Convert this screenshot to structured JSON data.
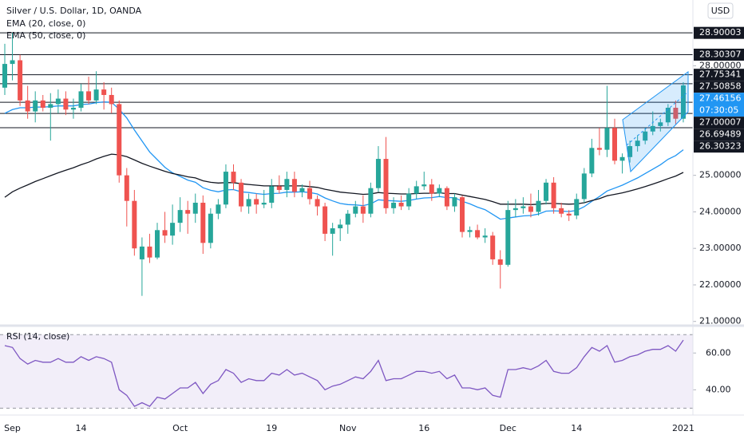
{
  "chart_data": [
    {
      "type": "candlestick",
      "title": "Silver / U.S. Dollar, 1D, OANDA",
      "currency": "USD",
      "categories": [
        null,
        "Sep",
        null,
        null,
        null,
        null,
        null,
        null,
        null,
        null,
        "14",
        null,
        null,
        null,
        null,
        null,
        null,
        null,
        null,
        null,
        null,
        null,
        null,
        "Oct",
        null,
        null,
        null,
        null,
        null,
        null,
        null,
        null,
        null,
        null,
        null,
        "19",
        null,
        null,
        null,
        null,
        null,
        null,
        null,
        null,
        null,
        "Nov",
        null,
        null,
        null,
        null,
        null,
        null,
        null,
        null,
        null,
        "16",
        null,
        null,
        null,
        null,
        null,
        null,
        null,
        null,
        null,
        null,
        "Dec",
        null,
        null,
        null,
        null,
        null,
        null,
        null,
        null,
        "14",
        null,
        null,
        null,
        null,
        null,
        null,
        null,
        null,
        null,
        null,
        null,
        null,
        null,
        "2021"
      ],
      "open": [
        27.4,
        28.05,
        28.15,
        27.05,
        26.75,
        27.05,
        26.85,
        26.95,
        27.1,
        26.8,
        26.85,
        27.3,
        27.05,
        27.35,
        27.2,
        26.95,
        25.0,
        24.3,
        22.7,
        23.05,
        22.75,
        23.5,
        23.35,
        23.7,
        24.05,
        23.95,
        24.25,
        23.15,
        23.95,
        24.2,
        25.1,
        24.8,
        24.15,
        24.35,
        24.2,
        24.25,
        24.7,
        24.6,
        24.9,
        24.55,
        24.65,
        24.35,
        24.15,
        23.4,
        23.55,
        23.65,
        23.95,
        24.15,
        23.95,
        24.65,
        25.45,
        24.1,
        24.25,
        24.15,
        24.5,
        24.7,
        24.75,
        24.5,
        24.65,
        24.15,
        24.4,
        23.45,
        23.5,
        23.3,
        23.35,
        22.7,
        22.55,
        24.05,
        24.1,
        24.15,
        24.0,
        24.3,
        24.8,
        24.1,
        23.95,
        23.9,
        24.35,
        25.05,
        25.75,
        25.7,
        26.3,
        25.4,
        25.5,
        25.8,
        25.95,
        26.2,
        26.35,
        26.45,
        26.85,
        26.55
      ],
      "high": [
        28.6,
        28.9,
        28.3,
        27.45,
        27.3,
        27.2,
        27.25,
        27.35,
        27.3,
        27.1,
        27.5,
        27.7,
        27.85,
        27.55,
        27.4,
        27.05,
        25.2,
        24.6,
        23.3,
        23.4,
        23.7,
        24.0,
        24.2,
        24.4,
        24.3,
        24.5,
        24.45,
        24.1,
        24.35,
        25.3,
        25.3,
        24.9,
        24.5,
        24.5,
        24.6,
        24.9,
        25.0,
        25.1,
        25.1,
        24.75,
        24.85,
        24.45,
        24.25,
        23.7,
        23.8,
        24.05,
        24.3,
        24.45,
        24.8,
        25.8,
        26.05,
        24.4,
        24.45,
        24.65,
        24.85,
        25.1,
        24.9,
        24.75,
        24.7,
        24.5,
        24.45,
        23.6,
        23.65,
        23.55,
        23.45,
        22.95,
        24.3,
        24.35,
        24.4,
        24.5,
        24.6,
        24.9,
        24.95,
        24.25,
        24.05,
        24.5,
        25.2,
        26.0,
        26.3,
        27.45,
        26.55,
        25.6,
        25.95,
        26.1,
        26.3,
        26.75,
        26.55,
        26.95,
        27.05,
        27.55
      ],
      "low": [
        27.2,
        27.6,
        26.9,
        26.55,
        26.45,
        26.75,
        25.95,
        26.7,
        26.65,
        26.55,
        26.75,
        26.95,
        26.95,
        26.8,
        26.7,
        24.8,
        23.6,
        22.8,
        21.7,
        22.6,
        22.7,
        23.15,
        23.1,
        23.45,
        23.4,
        23.7,
        22.85,
        23.0,
        23.8,
        24.1,
        24.6,
        24.0,
        23.95,
        23.95,
        24.1,
        24.1,
        24.5,
        24.4,
        24.4,
        24.4,
        24.2,
        23.9,
        23.2,
        22.8,
        23.2,
        23.4,
        23.85,
        23.7,
        23.85,
        24.55,
        23.95,
        23.95,
        24.05,
        24.05,
        24.35,
        24.6,
        24.3,
        24.4,
        24.05,
        24.0,
        23.3,
        23.3,
        23.25,
        23.15,
        22.55,
        21.9,
        22.5,
        23.85,
        23.95,
        23.85,
        23.9,
        24.2,
        23.95,
        23.85,
        23.75,
        23.8,
        24.25,
        24.95,
        25.55,
        25.5,
        25.3,
        25.05,
        25.35,
        25.65,
        25.85,
        26.1,
        26.2,
        26.35,
        26.4,
        26.45
      ],
      "close": [
        28.05,
        28.15,
        27.05,
        26.75,
        27.05,
        26.85,
        26.95,
        27.1,
        26.8,
        26.85,
        27.3,
        27.05,
        27.35,
        27.2,
        26.95,
        25.0,
        24.3,
        23.0,
        23.05,
        22.75,
        23.5,
        23.35,
        23.7,
        24.05,
        23.95,
        24.25,
        23.15,
        23.95,
        24.2,
        25.1,
        24.8,
        24.15,
        24.35,
        24.2,
        24.25,
        24.7,
        24.6,
        24.9,
        24.55,
        24.65,
        24.35,
        24.15,
        23.4,
        23.55,
        23.65,
        23.95,
        24.15,
        23.95,
        24.65,
        25.45,
        24.1,
        24.25,
        24.15,
        24.5,
        24.7,
        24.75,
        24.5,
        24.65,
        24.15,
        24.4,
        23.45,
        23.5,
        23.3,
        23.35,
        22.7,
        22.55,
        24.05,
        24.1,
        24.15,
        24.0,
        24.3,
        24.8,
        24.1,
        23.95,
        23.9,
        24.35,
        25.05,
        25.75,
        25.7,
        26.3,
        25.4,
        25.5,
        25.8,
        25.95,
        26.2,
        26.35,
        26.45,
        26.85,
        26.55,
        27.46156
      ],
      "up_color": "#26a69a",
      "down_color": "#ef5350",
      "series": [
        {
          "name": "EMA (20, close, 0)",
          "color": "#2196f3",
          "values": [
            26.7,
            26.8,
            26.85,
            26.85,
            26.87,
            26.87,
            26.88,
            26.9,
            26.9,
            26.9,
            26.94,
            26.95,
            26.99,
            27.01,
            27.0,
            26.81,
            26.57,
            26.24,
            25.94,
            25.64,
            25.43,
            25.22,
            25.07,
            24.97,
            24.87,
            24.81,
            24.66,
            24.59,
            24.55,
            24.6,
            24.61,
            24.55,
            24.53,
            24.5,
            24.48,
            24.5,
            24.51,
            24.54,
            24.54,
            24.55,
            24.53,
            24.49,
            24.38,
            24.3,
            24.23,
            24.2,
            24.19,
            24.17,
            24.22,
            24.33,
            24.31,
            24.3,
            24.29,
            24.31,
            24.35,
            24.38,
            24.39,
            24.42,
            24.39,
            24.39,
            24.29,
            24.22,
            24.13,
            24.06,
            23.93,
            23.8,
            23.83,
            23.86,
            23.89,
            23.9,
            23.94,
            24.02,
            24.03,
            24.02,
            24.01,
            24.04,
            24.14,
            24.29,
            24.42,
            24.57,
            24.65,
            24.73,
            24.83,
            24.93,
            25.05,
            25.17,
            25.29,
            25.44,
            25.54,
            25.7
          ]
        },
        {
          "name": "EMA (50, close, 0)",
          "color": "#131722",
          "values": [
            24.4,
            24.55,
            24.65,
            24.74,
            24.83,
            24.91,
            24.99,
            25.07,
            25.14,
            25.21,
            25.29,
            25.36,
            25.45,
            25.52,
            25.58,
            25.56,
            25.51,
            25.42,
            25.33,
            25.25,
            25.18,
            25.11,
            25.05,
            25.01,
            24.96,
            24.93,
            24.85,
            24.81,
            24.79,
            24.8,
            24.8,
            24.77,
            24.75,
            24.73,
            24.71,
            24.71,
            24.71,
            24.71,
            24.71,
            24.71,
            24.69,
            24.67,
            24.62,
            24.58,
            24.54,
            24.52,
            24.5,
            24.48,
            24.49,
            24.53,
            24.51,
            24.5,
            24.49,
            24.49,
            24.5,
            24.51,
            24.51,
            24.52,
            24.5,
            24.5,
            24.46,
            24.42,
            24.38,
            24.34,
            24.28,
            24.21,
            24.21,
            24.21,
            24.21,
            24.2,
            24.21,
            24.23,
            24.23,
            24.22,
            24.21,
            24.22,
            24.25,
            24.31,
            24.36,
            24.44,
            24.48,
            24.52,
            24.57,
            24.63,
            24.69,
            24.76,
            24.83,
            24.91,
            24.98,
            25.08
          ]
        }
      ],
      "levels": [
        28.90003,
        28.30307,
        27.75341,
        27.50858,
        27.00007,
        26.69489,
        26.30323
      ],
      "level_color": "#131722",
      "last_price_color": "#2196f3",
      "countdown": "07:30:05",
      "ylim": [
        20.95,
        29.8
      ],
      "yticks": [
        {
          "value": 28,
          "label": "28.00000"
        },
        {
          "value": 25,
          "label": "25.00000"
        },
        {
          "value": 24,
          "label": "24.00000"
        },
        {
          "value": 23,
          "label": "23.00000"
        },
        {
          "value": 22,
          "label": "22.00000"
        },
        {
          "value": 21,
          "label": "21.00000"
        }
      ]
    },
    {
      "type": "line",
      "title": "RSI (14, close)",
      "color": "#7e57c2",
      "values": [
        64,
        63,
        57,
        54,
        56,
        55,
        55,
        57,
        55,
        55,
        58,
        56,
        58,
        57,
        55,
        40,
        37,
        31,
        33,
        31,
        36,
        35,
        38,
        41,
        41,
        44,
        38,
        43,
        45,
        51,
        49,
        44,
        46,
        45,
        45,
        49,
        48,
        51,
        48,
        49,
        47,
        45,
        40,
        42,
        43,
        45,
        47,
        46,
        50,
        56,
        45,
        46,
        46,
        48,
        50,
        50,
        49,
        50,
        46,
        48,
        41,
        41,
        40,
        41,
        37,
        36,
        51,
        51,
        52,
        51,
        53,
        56,
        50,
        49,
        49,
        52,
        58,
        63,
        61,
        64,
        55,
        56,
        58,
        59,
        61,
        62,
        62,
        64,
        61,
        67
      ],
      "band": [
        30,
        70
      ],
      "ylim": [
        28,
        74
      ],
      "yticks": [
        {
          "value": 60,
          "label": "60.00"
        },
        {
          "value": 40,
          "label": "40.00"
        }
      ]
    }
  ]
}
